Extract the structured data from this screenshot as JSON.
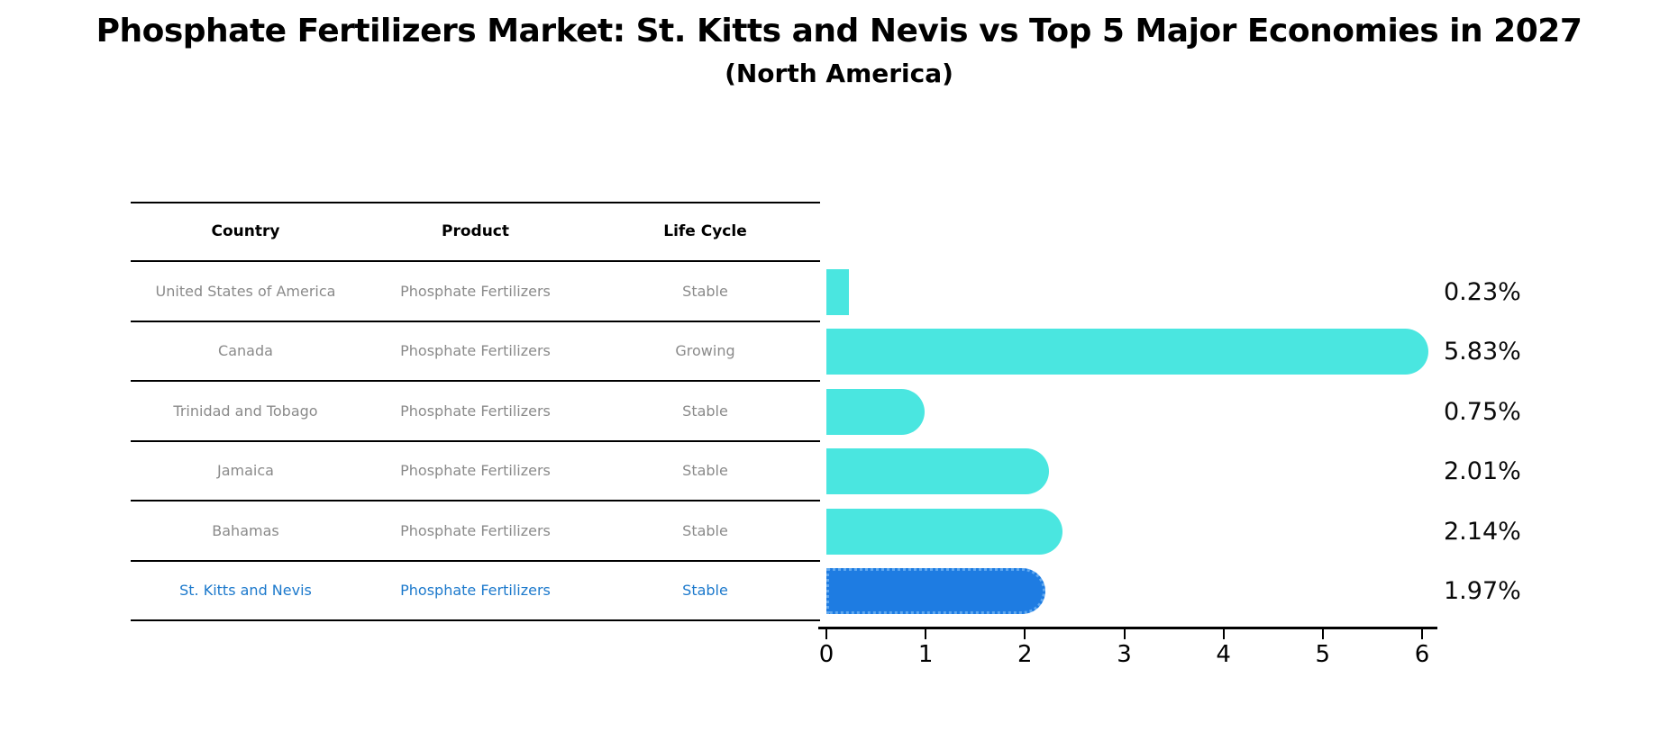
{
  "header": {
    "title": "Phosphate Fertilizers Market: St. Kitts and Nevis vs Top 5 Major Economies in 2027",
    "subtitle": "(North America)"
  },
  "table": {
    "columns": [
      "Country",
      "Product",
      "Life Cycle"
    ],
    "rows": [
      {
        "country": "United States of America",
        "product": "Phosphate Fertilizers",
        "life_cycle": "Stable",
        "highlight": false
      },
      {
        "country": "Canada",
        "product": "Phosphate Fertilizers",
        "life_cycle": "Growing",
        "highlight": false
      },
      {
        "country": "Trinidad and Tobago",
        "product": "Phosphate Fertilizers",
        "life_cycle": "Stable",
        "highlight": false
      },
      {
        "country": "Jamaica",
        "product": "Phosphate Fertilizers",
        "life_cycle": "Stable",
        "highlight": false
      },
      {
        "country": "Bahamas",
        "product": "Phosphate Fertilizers",
        "life_cycle": "Stable",
        "highlight": false
      },
      {
        "country": "St. Kitts and Nevis",
        "product": "Phosphate Fertilizers",
        "life_cycle": "Stable",
        "highlight": true
      }
    ]
  },
  "chart_data": {
    "type": "bar",
    "orientation": "horizontal",
    "title": "Phosphate Fertilizers Market: St. Kitts and Nevis vs Top 5 Major Economies in 2027 (North America)",
    "categories": [
      "United States of America",
      "Canada",
      "Trinidad and Tobago",
      "Jamaica",
      "Bahamas",
      "St. Kitts and Nevis"
    ],
    "values": [
      0.23,
      5.83,
      0.75,
      2.01,
      2.14,
      1.97
    ],
    "value_labels": [
      "0.23%",
      "5.83%",
      "0.75%",
      "2.01%",
      "2.14%",
      "1.97%"
    ],
    "xlabel": "",
    "ylabel": "",
    "xlim": [
      0,
      6
    ],
    "x_ticks": [
      0,
      1,
      2,
      3,
      4,
      5,
      6
    ],
    "grid": false,
    "legend": null,
    "highlight_index": 5
  },
  "colors": {
    "bar_default": "#4ae6e0",
    "bar_highlight": "#1e7ce2",
    "bar_highlight_dots": "#5fa8f0",
    "highlight_text": "#1c79cc",
    "table_text": "#8a8a8a",
    "axis": "#000000",
    "background": "#ffffff"
  }
}
